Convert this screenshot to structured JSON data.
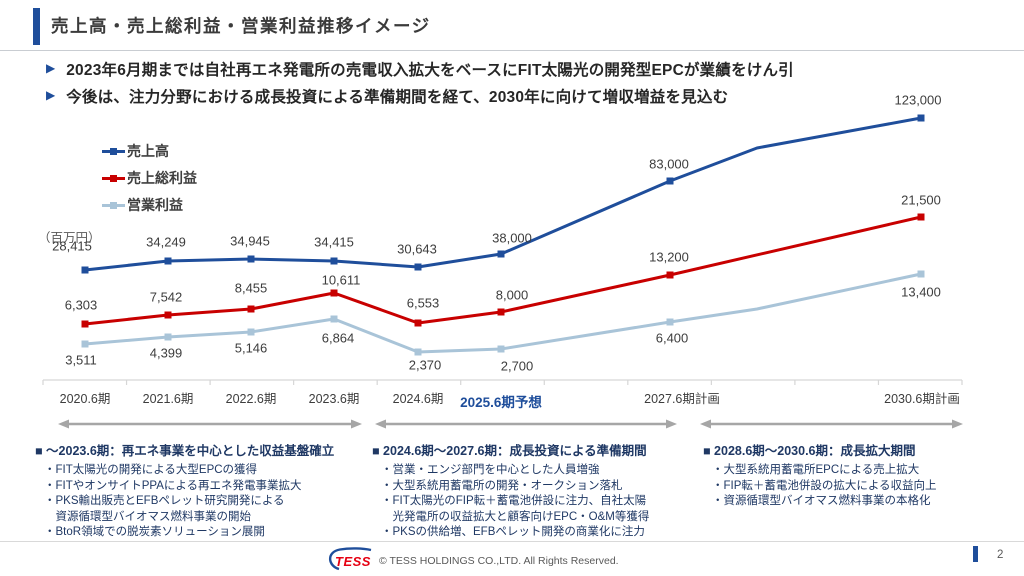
{
  "header": {
    "title": "売上高・売上総利益・営業利益推移イメージ"
  },
  "pointer_char": "▶",
  "bullet_char": "・",
  "key_messages": [
    "2023年6月期までは自社再エネ発電所の売電収入拡大をベースにFIT太陽光の開発型EPCが業績をけん引",
    "今後は、注力分野における成長投資による準備期間を経て、2030年に向けて増収増益を見込む"
  ],
  "chart_data": {
    "type": "line",
    "title": "売上高・売上総利益・営業利益推移イメージ",
    "unit_label": "（百万円）",
    "categories": [
      "2020.6期",
      "2021.6期",
      "2022.6期",
      "2023.6期",
      "2024.6期",
      "2025.6期予想",
      "2027.6期計画",
      "2030.6期計画"
    ],
    "highlighted_category": "2025.6期予想",
    "legend_position": "top-left",
    "grid": false,
    "series": [
      {
        "name": "売上高",
        "color": "#1F4E9B",
        "values": [
          28415,
          34249,
          34945,
          34415,
          30643,
          38000,
          83000,
          123000
        ]
      },
      {
        "name": "売上総利益",
        "color": "#C80000",
        "values": [
          6303,
          7542,
          8455,
          10611,
          6553,
          8000,
          13200,
          21500
        ]
      },
      {
        "name": "営業利益",
        "color": "#A9C4D8",
        "values": [
          3511,
          4399,
          5146,
          6864,
          2370,
          2700,
          6400,
          13400
        ]
      }
    ]
  },
  "colors": {
    "accent_blue": "#1F4E9B",
    "navy_text": "#1F3864",
    "arrow_gray": "#A6A6A6",
    "logo_red": "#E60012"
  },
  "sections": [
    {
      "marker": "■",
      "title": "～2023.6期：再エネ事業を中心とした収益基盤確立",
      "bullets": [
        {
          "lines": [
            "FIT太陽光の開発による大型EPCの獲得"
          ]
        },
        {
          "lines": [
            "FITやオンサイトPPAによる再エネ発電事業拡大"
          ]
        },
        {
          "lines": [
            "PKS輸出販売とEFBペレット研究開発による",
            "資源循環型バイオマス燃料事業の開始"
          ]
        },
        {
          "lines": [
            "BtoR領域での脱炭素ソリューション展開"
          ]
        }
      ]
    },
    {
      "marker": "■",
      "title": "2024.6期～2027.6期：成長投資による準備期間",
      "bullets": [
        {
          "lines": [
            "営業・エンジ部門を中心とした人員増強"
          ]
        },
        {
          "lines": [
            "大型系統用蓄電所の開発・オークション落札"
          ]
        },
        {
          "lines": [
            "FIT太陽光のFIP転＋蓄電池併設に注力、自社太陽",
            "光発電所の収益拡大と顧客向けEPC・O&M等獲得"
          ]
        },
        {
          "lines": [
            "PKSの供給増、EFBペレット開発の商業化に注力"
          ]
        }
      ]
    },
    {
      "marker": "■",
      "title": "2028.6期～2030.6期：成長拡大期間",
      "bullets": [
        {
          "lines": [
            "大型系統用蓄電所EPCによる売上拡大"
          ]
        },
        {
          "lines": [
            "FIP転＋蓄電池併設の拡大による収益向上"
          ]
        },
        {
          "lines": [
            "資源循環型バイオマス燃料事業の本格化"
          ]
        }
      ]
    }
  ],
  "footer": {
    "logo_text": "TESS",
    "copyright": "© TESS HOLDINGS CO.,LTD. All Rights Reserved.",
    "page_number": "2"
  }
}
